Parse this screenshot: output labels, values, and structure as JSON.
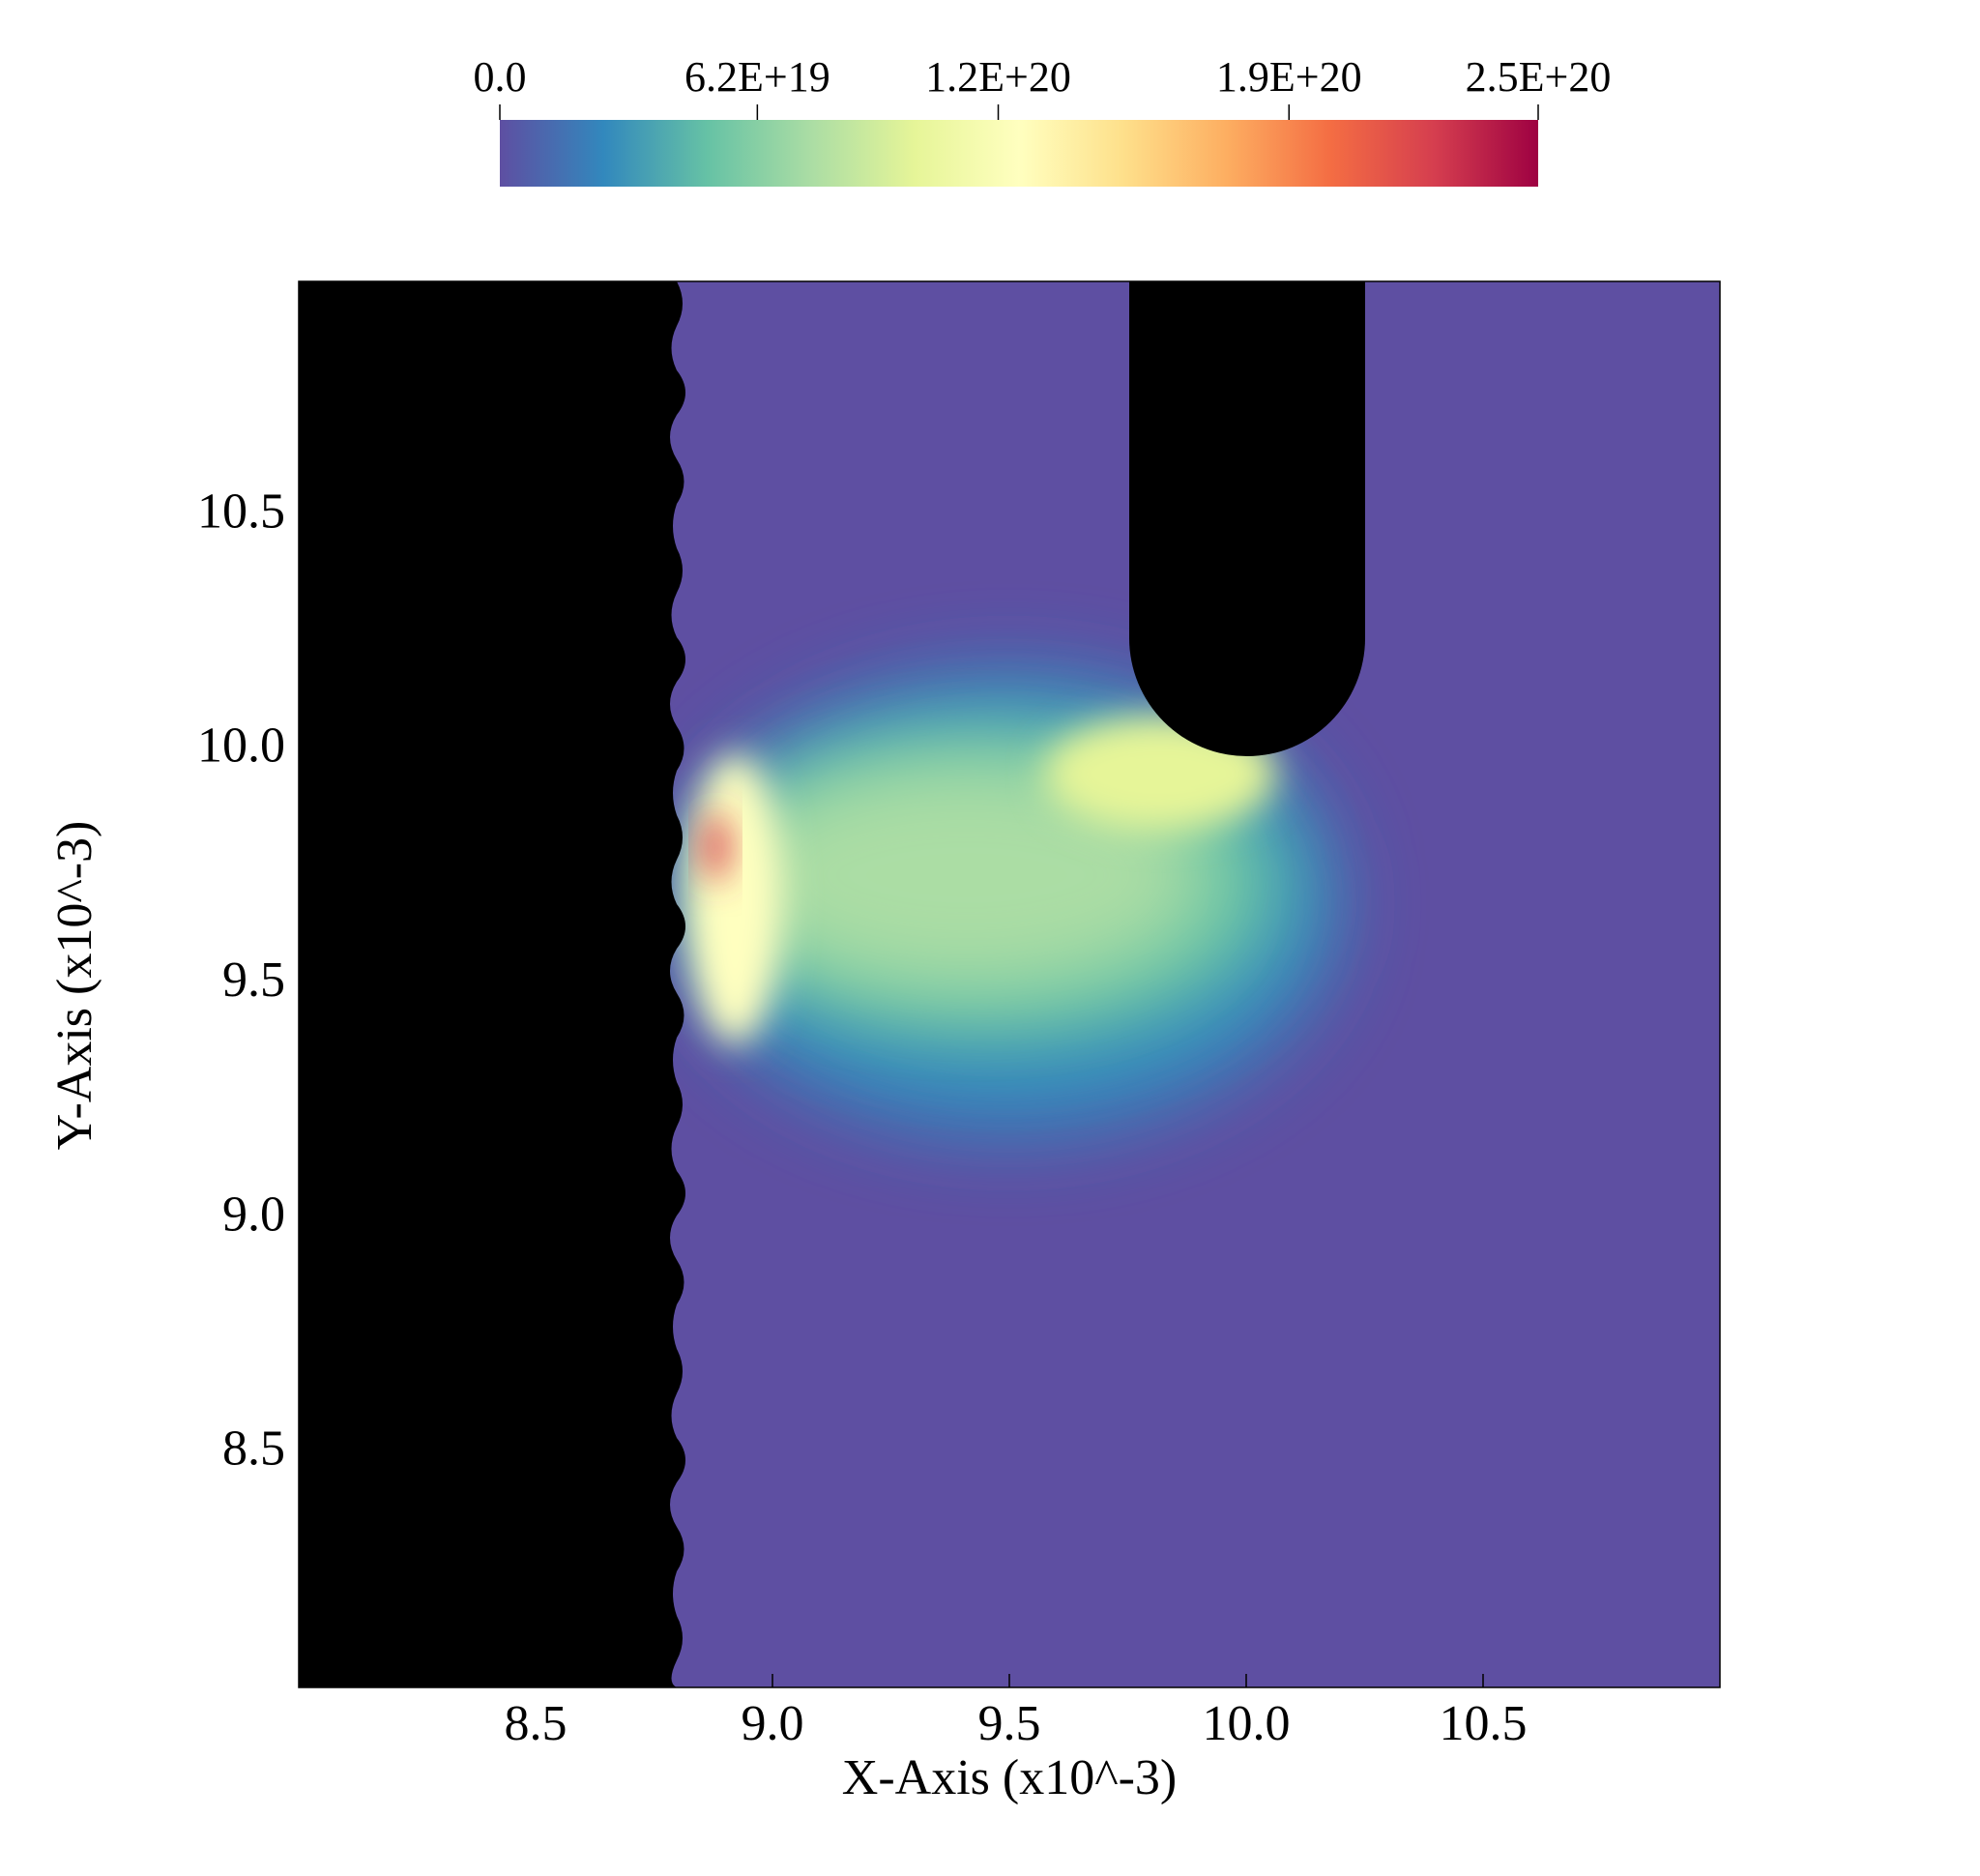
{
  "chart_data": {
    "type": "heatmap",
    "x_label": "X-Axis (x10^-3)",
    "y_label": "Y-Axis (x10^-3)",
    "xlim": [
      8,
      11
    ],
    "ylim": [
      8,
      11
    ],
    "xticks": [
      8.5,
      {
        "value": 9,
        "label": "9.0"
      },
      9.5,
      {
        "value": 10,
        "label": "10.0"
      },
      10.5
    ],
    "yticks": [
      8.5,
      {
        "value": 9,
        "label": "9.0"
      },
      9.5,
      {
        "value": 10,
        "label": "10.0"
      },
      10.5
    ],
    "colorbar": {
      "lim": [
        0,
        2.5e+20
      ],
      "ticks": [
        {
          "value": 0,
          "label": "0.0"
        },
        {
          "value": 6.2e+19,
          "label": "6.2E+19"
        },
        {
          "value": 1.2e+20,
          "label": "1.2E+20"
        },
        {
          "value": 1.9e+20,
          "label": "1.9E+20"
        },
        {
          "value": 2.5e+20,
          "label": "2.5E+20"
        }
      ],
      "colors": [
        "#5e4fa2",
        "#3288bd",
        "#66c2a5",
        "#abdda4",
        "#e6f598",
        "#ffffbf",
        "#fee08b",
        "#fdae61",
        "#f46d43",
        "#d53e4f",
        "#9e0142"
      ]
    }
  }
}
